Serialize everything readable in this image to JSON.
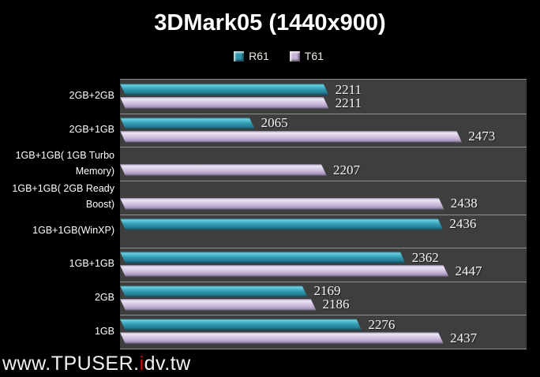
{
  "title": "3DMark05 (1440x900)",
  "watermark": {
    "prefix": "www.TPUSER.",
    "highlight": "i",
    "suffix": "dv.tw"
  },
  "colors": {
    "background": "#000000",
    "plot_background": "#3e3e3e",
    "gridline": "#8f8f8f",
    "r61_bar": "#2f96ad",
    "t61_bar": "#c6b5d8",
    "text": "#ffffff",
    "watermark_accent": "#e60000"
  },
  "chart_data": {
    "type": "bar",
    "orientation": "horizontal",
    "title": "3DMark05 (1440x900)",
    "categories": [
      "2GB+2GB",
      "2GB+1GB",
      "1GB+1GB( 1GB Turbo Memory)",
      "1GB+1GB( 2GB Ready Boost)",
      "1GB+1GB(WinXP)",
      "1GB+1GB",
      "2GB",
      "1GB"
    ],
    "series": [
      {
        "name": "R61",
        "color": "#2f96ad",
        "values": [
          2211,
          2065,
          null,
          null,
          2436,
          2362,
          2169,
          2276
        ]
      },
      {
        "name": "T61",
        "color": "#c6b5d8",
        "values": [
          2211,
          2473,
          2207,
          2438,
          null,
          2447,
          2186,
          2437
        ]
      }
    ],
    "xlim": [
      1800,
      2600
    ],
    "grid": "category-separators",
    "legend_position": "top",
    "value_labels": "outside-end"
  }
}
